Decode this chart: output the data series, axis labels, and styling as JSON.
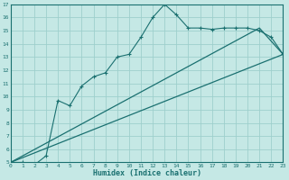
{
  "title": "",
  "xlabel": "Humidex (Indice chaleur)",
  "ylabel": "",
  "bg_color": "#c5e8e5",
  "grid_color": "#9ecfcc",
  "line_color": "#1a7070",
  "xmin": 0,
  "xmax": 23,
  "ymin": 5,
  "ymax": 17,
  "x_ticks": [
    0,
    1,
    2,
    3,
    4,
    5,
    6,
    7,
    8,
    9,
    10,
    11,
    12,
    13,
    14,
    15,
    16,
    17,
    18,
    19,
    20,
    21,
    22,
    23
  ],
  "y_ticks": [
    5,
    6,
    7,
    8,
    9,
    10,
    11,
    12,
    13,
    14,
    15,
    16,
    17
  ],
  "series1_x": [
    0,
    1,
    2,
    3,
    4,
    5,
    6,
    7,
    8,
    9,
    10,
    11,
    12,
    13,
    14,
    15,
    16,
    17,
    18,
    19,
    20,
    21,
    22,
    23
  ],
  "series1_y": [
    5,
    5,
    4.8,
    5.5,
    9.7,
    9.3,
    10.8,
    11.5,
    11.8,
    13.0,
    13.2,
    14.5,
    16.0,
    17.0,
    16.2,
    15.2,
    15.2,
    15.1,
    15.2,
    15.2,
    15.2,
    15.0,
    14.5,
    13.2
  ],
  "series2_x": [
    0,
    23
  ],
  "series2_y": [
    5,
    13.2
  ],
  "series3_x": [
    0,
    21,
    23
  ],
  "series3_y": [
    5,
    15.2,
    13.2
  ]
}
